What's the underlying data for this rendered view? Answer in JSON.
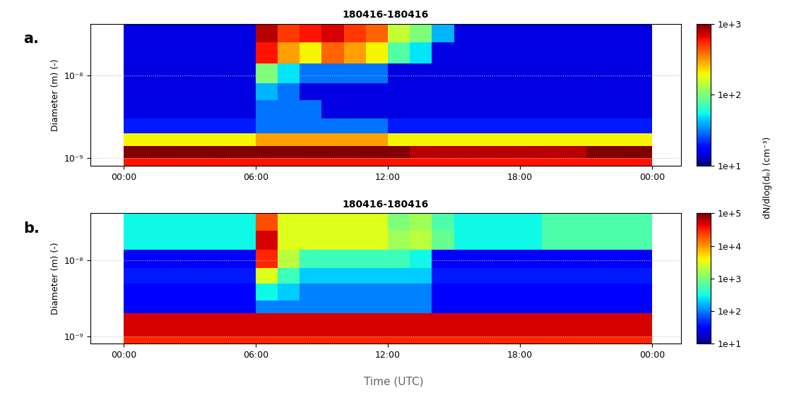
{
  "chart_data": [
    {
      "type": "heatmap",
      "label": "a.",
      "title": "180416-180416",
      "ylabel": "Diameter (m) (-)",
      "log": "y",
      "grid": true,
      "xlim": [
        -1.5,
        25.3
      ],
      "xticks": [
        {
          "value": 0,
          "label": "00:00"
        },
        {
          "value": 6,
          "label": "06:00"
        },
        {
          "value": 12,
          "label": "12:00"
        },
        {
          "value": 18,
          "label": "18:00"
        },
        {
          "value": 24,
          "label": "00:00"
        }
      ],
      "ylim": [
        8e-10,
        4.2e-08
      ],
      "yticks": [
        {
          "value": 1e-09,
          "label": "10⁻⁹"
        },
        {
          "value": 1e-08,
          "label": "10⁻⁸"
        }
      ],
      "x_edges": [
        0,
        1,
        2,
        3,
        4,
        5,
        6,
        7,
        8,
        9,
        10,
        11,
        12,
        13,
        14,
        15,
        16,
        17,
        18,
        19,
        20,
        21,
        22,
        23,
        24
      ],
      "y_edges": [
        8e-10,
        1e-09,
        1.4e-09,
        2e-09,
        3e-09,
        5e-09,
        8e-09,
        1.4e-08,
        2.5e-08,
        4.2e-08
      ],
      "cells": [
        [
          600,
          600,
          600,
          600,
          600,
          600,
          600,
          600,
          600,
          600,
          600,
          600,
          600,
          600,
          600,
          600,
          600,
          600,
          600,
          600,
          600,
          600,
          600,
          600
        ],
        [
          1000,
          1000,
          1000,
          1000,
          1000,
          1000,
          1000,
          1000,
          1000,
          1000,
          1000,
          1000,
          1000,
          800,
          800,
          800,
          800,
          800,
          800,
          800,
          800,
          1000,
          1000,
          1000
        ],
        [
          200,
          200,
          200,
          200,
          200,
          200,
          300,
          300,
          300,
          300,
          300,
          300,
          200,
          200,
          200,
          200,
          200,
          200,
          200,
          200,
          200,
          200,
          200,
          200
        ],
        [
          20,
          20,
          20,
          20,
          20,
          20,
          30,
          30,
          30,
          30,
          30,
          30,
          20,
          20,
          20,
          20,
          20,
          20,
          20,
          20,
          20,
          20,
          20,
          20
        ],
        [
          15,
          15,
          15,
          15,
          15,
          15,
          30,
          30,
          30,
          15,
          15,
          15,
          15,
          15,
          15,
          15,
          15,
          15,
          15,
          15,
          15,
          15,
          15,
          15
        ],
        [
          15,
          15,
          15,
          15,
          15,
          15,
          40,
          30,
          15,
          15,
          15,
          15,
          15,
          15,
          15,
          15,
          15,
          15,
          15,
          15,
          15,
          15,
          15,
          15
        ],
        [
          15,
          15,
          15,
          15,
          15,
          15,
          100,
          50,
          30,
          30,
          30,
          30,
          15,
          15,
          15,
          15,
          15,
          15,
          15,
          15,
          15,
          15,
          15,
          15
        ],
        [
          15,
          15,
          15,
          15,
          15,
          15,
          600,
          300,
          200,
          400,
          300,
          200,
          80,
          50,
          15,
          15,
          15,
          15,
          15,
          15,
          15,
          15,
          15,
          15
        ],
        [
          15,
          15,
          15,
          15,
          15,
          15,
          800,
          500,
          600,
          700,
          500,
          400,
          150,
          100,
          40,
          15,
          15,
          15,
          15,
          15,
          15,
          15,
          15,
          15
        ]
      ],
      "colorbar": {
        "range": [
          10,
          1000
        ],
        "ticks": [
          {
            "value": 10,
            "label": "1e+1"
          },
          {
            "value": 100,
            "label": "1e+2"
          },
          {
            "value": 1000,
            "label": "1e+3"
          }
        ]
      }
    },
    {
      "type": "heatmap",
      "label": "b.",
      "title": "180416-180416",
      "ylabel": "Diameter (m) (-)",
      "xlabel": "Time (UTC)",
      "colorbar_label": "dN/dlog(dₚ) (cm⁻³)",
      "log": "y",
      "grid": true,
      "xlim": [
        -1.5,
        25.3
      ],
      "xticks": [
        {
          "value": 0,
          "label": "00:00"
        },
        {
          "value": 6,
          "label": "06:00"
        },
        {
          "value": 12,
          "label": "12:00"
        },
        {
          "value": 18,
          "label": "18:00"
        },
        {
          "value": 24,
          "label": "00:00"
        }
      ],
      "ylim": [
        8e-10,
        4.2e-08
      ],
      "yticks": [
        {
          "value": 1e-09,
          "label": "10⁻⁹"
        },
        {
          "value": 1e-08,
          "label": "10⁻⁸"
        }
      ],
      "x_edges": [
        0,
        1,
        2,
        3,
        4,
        5,
        6,
        7,
        8,
        9,
        10,
        11,
        12,
        13,
        14,
        15,
        16,
        17,
        18,
        19,
        20,
        21,
        22,
        23,
        24
      ],
      "y_edges": [
        8e-10,
        1e-09,
        1.4e-09,
        2e-09,
        3e-09,
        5e-09,
        8e-09,
        1.4e-08,
        2.5e-08,
        4.2e-08
      ],
      "cells": [
        [
          30000,
          30000,
          30000,
          30000,
          30000,
          30000,
          30000,
          30000,
          30000,
          30000,
          30000,
          30000,
          30000,
          30000,
          30000,
          30000,
          30000,
          30000,
          30000,
          30000,
          30000,
          30000,
          30000,
          30000
        ],
        [
          50000,
          50000,
          50000,
          50000,
          50000,
          50000,
          50000,
          50000,
          50000,
          50000,
          50000,
          50000,
          50000,
          50000,
          50000,
          50000,
          50000,
          50000,
          50000,
          50000,
          50000,
          50000,
          50000,
          50000
        ],
        [
          50000,
          50000,
          50000,
          50000,
          50000,
          50000,
          50000,
          50000,
          50000,
          50000,
          50000,
          50000,
          50000,
          50000,
          50000,
          50000,
          50000,
          50000,
          50000,
          50000,
          50000,
          50000,
          50000,
          50000
        ],
        [
          30,
          30,
          30,
          30,
          30,
          30,
          100,
          100,
          100,
          100,
          100,
          100,
          100,
          100,
          30,
          30,
          30,
          30,
          30,
          30,
          30,
          30,
          30,
          30
        ],
        [
          30,
          30,
          30,
          30,
          30,
          30,
          300,
          200,
          100,
          100,
          100,
          100,
          100,
          100,
          30,
          30,
          30,
          30,
          30,
          30,
          30,
          30,
          30,
          30
        ],
        [
          40,
          40,
          40,
          40,
          40,
          40,
          3000,
          500,
          200,
          200,
          200,
          200,
          200,
          200,
          40,
          40,
          40,
          40,
          40,
          40,
          40,
          40,
          40,
          40
        ],
        [
          30,
          30,
          30,
          30,
          30,
          30,
          30000,
          2000,
          500,
          500,
          500,
          500,
          500,
          300,
          30,
          30,
          30,
          30,
          30,
          30,
          30,
          30,
          30,
          30
        ],
        [
          300,
          300,
          300,
          300,
          300,
          300,
          50000,
          3000,
          3000,
          3000,
          3000,
          3000,
          1500,
          2000,
          800,
          300,
          300,
          300,
          300,
          600,
          600,
          600,
          600,
          600
        ],
        [
          300,
          300,
          300,
          300,
          300,
          300,
          20000,
          3000,
          3000,
          3000,
          3000,
          3000,
          1000,
          1500,
          600,
          300,
          300,
          300,
          300,
          600,
          600,
          600,
          600,
          600
        ]
      ],
      "colorbar": {
        "range": [
          10,
          100000
        ],
        "ticks": [
          {
            "value": 10,
            "label": "1e+1"
          },
          {
            "value": 100,
            "label": "1e+2"
          },
          {
            "value": 1000,
            "label": "1e+3"
          },
          {
            "value": 10000,
            "label": "1e+4"
          },
          {
            "value": 100000,
            "label": "1e+5"
          }
        ]
      }
    }
  ]
}
